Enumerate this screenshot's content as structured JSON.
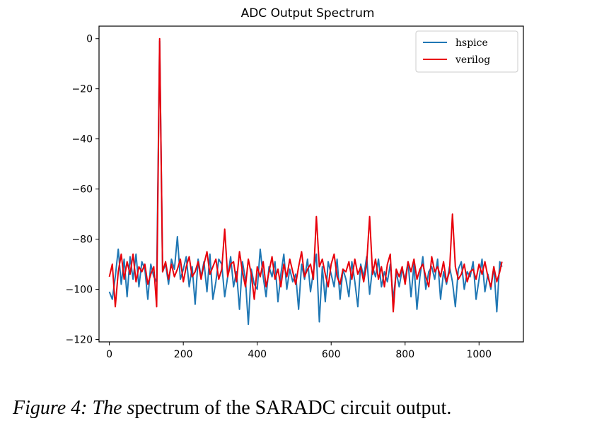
{
  "chart_data": {
    "type": "line",
    "title": "ADC Output Spectrum",
    "xlabel": "",
    "ylabel": "",
    "xlim": [
      -28,
      1120
    ],
    "ylim": [
      -121,
      5
    ],
    "xticks": [
      0,
      200,
      400,
      600,
      800,
      1000
    ],
    "yticks": [
      0,
      -20,
      -40,
      -60,
      -80,
      -100,
      -120
    ],
    "xtick_labels": [
      "0",
      "200",
      "400",
      "600",
      "800",
      "1000"
    ],
    "ytick_labels": [
      "0",
      "−20",
      "−40",
      "−60",
      "−80",
      "−100",
      "−120"
    ],
    "grid": false,
    "legend_position": "top-right",
    "series": [
      {
        "name": "hspice",
        "color": "#1f77b4",
        "x": [
          0,
          8,
          16,
          24,
          32,
          40,
          48,
          56,
          64,
          72,
          80,
          88,
          96,
          104,
          112,
          120,
          128,
          136,
          144,
          152,
          160,
          168,
          176,
          184,
          192,
          200,
          208,
          216,
          224,
          232,
          240,
          248,
          256,
          264,
          272,
          280,
          288,
          296,
          304,
          312,
          320,
          328,
          336,
          344,
          352,
          360,
          368,
          376,
          384,
          392,
          400,
          408,
          416,
          424,
          432,
          440,
          448,
          456,
          464,
          472,
          480,
          488,
          496,
          504,
          512,
          520,
          528,
          536,
          544,
          552,
          560,
          568,
          576,
          584,
          592,
          600,
          608,
          616,
          624,
          632,
          640,
          648,
          656,
          664,
          672,
          680,
          688,
          696,
          704,
          712,
          720,
          728,
          736,
          744,
          752,
          760,
          768,
          776,
          784,
          792,
          800,
          808,
          816,
          824,
          832,
          840,
          848,
          856,
          864,
          872,
          880,
          888,
          896,
          904,
          912,
          920,
          928,
          936,
          944,
          952,
          960,
          968,
          976,
          984,
          992,
          1000,
          1008,
          1016,
          1024,
          1032,
          1040,
          1048,
          1056,
          1062
        ],
        "y": [
          -101,
          -104,
          -95,
          -84,
          -98,
          -88,
          -103,
          -87,
          -96,
          -86,
          -99,
          -89,
          -92,
          -104,
          -90,
          -95,
          -97,
          -1,
          -93,
          -90,
          -98,
          -88,
          -92,
          -79,
          -96,
          -92,
          -87,
          -99,
          -91,
          -106,
          -88,
          -95,
          -89,
          -101,
          -86,
          -104,
          -97,
          -88,
          -90,
          -103,
          -95,
          -87,
          -99,
          -93,
          -108,
          -89,
          -96,
          -114,
          -92,
          -98,
          -100,
          -84,
          -95,
          -103,
          -91,
          -95,
          -89,
          -105,
          -94,
          -86,
          -100,
          -92,
          -97,
          -94,
          -108,
          -90,
          -96,
          -88,
          -101,
          -93,
          -86,
          -113,
          -91,
          -105,
          -89,
          -94,
          -99,
          -88,
          -104,
          -92,
          -96,
          -103,
          -89,
          -97,
          -107,
          -90,
          -95,
          -87,
          -102,
          -91,
          -95,
          -88,
          -99,
          -93,
          -97,
          -90,
          -104,
          -93,
          -99,
          -92,
          -96,
          -89,
          -103,
          -90,
          -108,
          -95,
          -87,
          -100,
          -93,
          -91,
          -96,
          -88,
          -104,
          -93,
          -98,
          -91,
          -97,
          -107,
          -92,
          -89,
          -100,
          -93,
          -95,
          -89,
          -104,
          -96,
          -88,
          -101,
          -94,
          -100,
          -91,
          -109,
          -89,
          -91
        ]
      },
      {
        "name": "verilog",
        "color": "#e8000b",
        "x": [
          0,
          8,
          16,
          24,
          32,
          40,
          48,
          56,
          64,
          72,
          80,
          88,
          96,
          104,
          112,
          120,
          128,
          136,
          144,
          152,
          160,
          168,
          176,
          184,
          192,
          200,
          208,
          216,
          224,
          232,
          240,
          248,
          256,
          264,
          272,
          280,
          288,
          296,
          304,
          312,
          320,
          328,
          336,
          344,
          352,
          360,
          368,
          376,
          384,
          392,
          400,
          408,
          416,
          424,
          432,
          440,
          448,
          456,
          464,
          472,
          480,
          488,
          496,
          504,
          512,
          520,
          528,
          536,
          544,
          552,
          560,
          568,
          576,
          584,
          592,
          600,
          608,
          616,
          624,
          632,
          640,
          648,
          656,
          664,
          672,
          680,
          688,
          696,
          704,
          712,
          720,
          728,
          736,
          744,
          752,
          760,
          768,
          776,
          784,
          792,
          800,
          808,
          816,
          824,
          832,
          840,
          848,
          856,
          864,
          872,
          880,
          888,
          896,
          904,
          912,
          920,
          928,
          936,
          944,
          952,
          960,
          968,
          976,
          984,
          992,
          1000,
          1008,
          1016,
          1024,
          1032,
          1040,
          1048,
          1056,
          1062
        ],
        "y": [
          -95,
          -90,
          -107,
          -93,
          -86,
          -96,
          -89,
          -94,
          -86,
          -97,
          -91,
          -93,
          -90,
          -98,
          -94,
          -91,
          -107,
          0,
          -93,
          -89,
          -96,
          -90,
          -95,
          -92,
          -88,
          -97,
          -91,
          -87,
          -95,
          -93,
          -89,
          -96,
          -90,
          -85,
          -94,
          -91,
          -88,
          -96,
          -92,
          -76,
          -95,
          -90,
          -89,
          -97,
          -85,
          -93,
          -99,
          -88,
          -94,
          -104,
          -91,
          -95,
          -89,
          -99,
          -93,
          -87,
          -96,
          -92,
          -99,
          -90,
          -95,
          -88,
          -93,
          -98,
          -91,
          -85,
          -95,
          -92,
          -90,
          -96,
          -71,
          -91,
          -88,
          -94,
          -99,
          -90,
          -86,
          -95,
          -98,
          -92,
          -93,
          -89,
          -96,
          -88,
          -94,
          -91,
          -97,
          -90,
          -71,
          -94,
          -88,
          -96,
          -91,
          -99,
          -90,
          -86,
          -109,
          -92,
          -95,
          -91,
          -98,
          -89,
          -93,
          -88,
          -96,
          -92,
          -90,
          -95,
          -99,
          -87,
          -93,
          -91,
          -95,
          -89,
          -97,
          -93,
          -70,
          -91,
          -96,
          -94,
          -90,
          -97,
          -93,
          -92,
          -96,
          -90,
          -94,
          -89,
          -95,
          -99,
          -91,
          -97,
          -93,
          -89
        ]
      }
    ]
  },
  "caption": {
    "italic_part": "Figure 4: The s",
    "regular_part": "pectrum of the SARADC circuit output."
  }
}
